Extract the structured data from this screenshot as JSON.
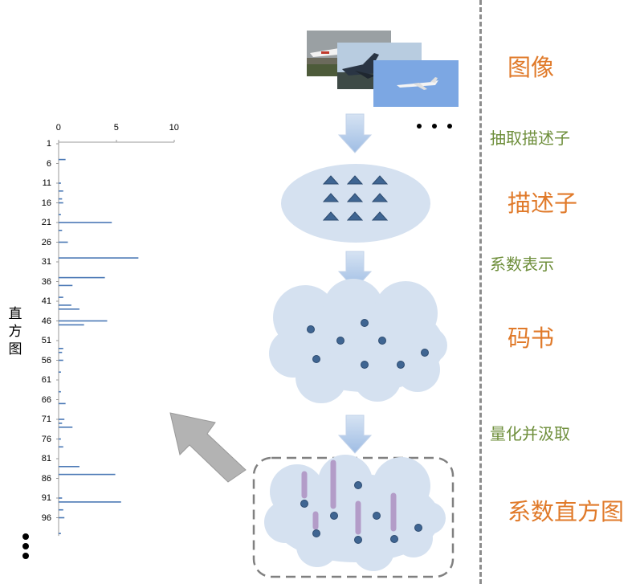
{
  "labels": {
    "images": "图像",
    "extract_descriptors": "抽取描述子",
    "descriptors": "描述子",
    "coefficient_representation": "系数表示",
    "codebook": "码书",
    "quantize_pool": "量化并汲取",
    "coefficient_histogram": "系数直方图",
    "histogram_axis": "直方图"
  },
  "colors": {
    "orange_text": "#e07a2a",
    "green_text": "#6f8f3c",
    "ellipse_fill": "#d5e1f0",
    "triangle_fill": "#3f6592",
    "dot_fill": "#3f6592",
    "bar_fill": "#b39cc8",
    "hist_bar": "#4a78b5",
    "arrow_fill": "#b9cde8",
    "gray_arrow": "#b3b3b3"
  },
  "icons": {
    "photo_1": "airplane-photo-icon",
    "photo_2": "fighter-jet-photo-icon",
    "photo_3": "airliner-sky-photo-icon"
  },
  "chart_data": {
    "type": "bar",
    "orientation": "horizontal",
    "title": "",
    "xlabel": "",
    "ylabel": "直方图",
    "xlim": [
      0,
      10
    ],
    "x_ticks": [
      "0",
      "5",
      "10"
    ],
    "y_tick_labels": [
      "1",
      "6",
      "11",
      "16",
      "21",
      "26",
      "31",
      "36",
      "41",
      "46",
      "51",
      "56",
      "61",
      "66",
      "71",
      "76",
      "81",
      "86",
      "91",
      "96"
    ],
    "categories": [
      1,
      2,
      3,
      4,
      5,
      6,
      7,
      8,
      9,
      10,
      11,
      12,
      13,
      14,
      15,
      16,
      17,
      18,
      19,
      20,
      21,
      22,
      23,
      24,
      25,
      26,
      27,
      28,
      29,
      30,
      31,
      32,
      33,
      34,
      35,
      36,
      37,
      38,
      39,
      40,
      41,
      42,
      43,
      44,
      45,
      46,
      47,
      48,
      49,
      50,
      51,
      52,
      53,
      54,
      55,
      56,
      57,
      58,
      59,
      60,
      61,
      62,
      63,
      64,
      65,
      66,
      67,
      68,
      69,
      70,
      71,
      72,
      73,
      74,
      75,
      76,
      77,
      78,
      79,
      80,
      81,
      82,
      83,
      84,
      85,
      86,
      87,
      88,
      89,
      90,
      91,
      92,
      93,
      94,
      95,
      96,
      97,
      98,
      99,
      100
    ],
    "values": [
      0,
      0,
      0,
      0,
      0.6,
      0,
      0,
      0,
      0,
      0,
      0.2,
      0,
      0.4,
      0,
      0.3,
      0.4,
      0,
      0,
      0.2,
      0,
      4.6,
      0,
      0.3,
      0,
      0,
      0.8,
      0,
      0,
      0,
      6.9,
      0,
      0,
      0,
      0,
      4,
      0,
      1.2,
      0,
      0,
      0.4,
      0,
      1.1,
      1.8,
      0,
      0,
      4.2,
      2.2,
      0,
      0,
      0,
      0,
      0,
      0.4,
      0.3,
      0,
      0.4,
      0,
      0,
      0.2,
      0,
      0,
      0,
      0,
      0.2,
      0,
      0,
      0.6,
      0,
      0,
      0,
      0.5,
      0.3,
      1.2,
      0,
      0,
      0.2,
      0,
      0.4,
      0,
      0,
      0,
      0,
      1.8,
      0,
      4.9,
      0,
      0,
      0,
      0,
      0,
      0.3,
      5.4,
      0,
      0.4,
      0,
      0.5,
      0,
      0,
      0,
      0.2
    ]
  }
}
